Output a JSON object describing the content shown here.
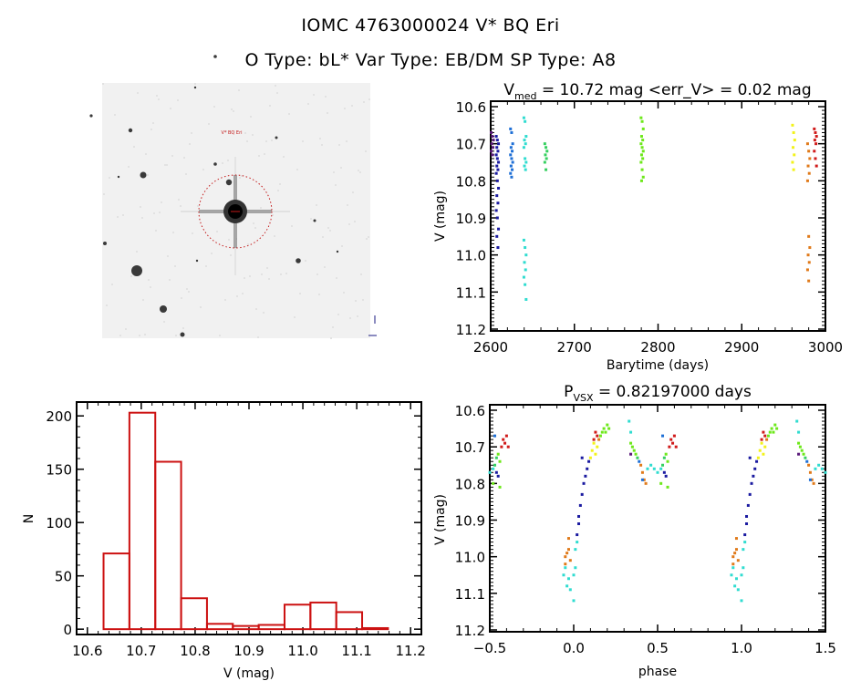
{
  "header": {
    "title_line1": "IOMC 4763000024    V* BQ Eri",
    "title_line2": "O Type: bL*   Var Type: EB/DM   SP Type: A8"
  },
  "colors": {
    "purple": "#5a1a7a",
    "darkblue": "#1a1aa0",
    "blue": "#1e6fd6",
    "cyan": "#30dcd0",
    "green": "#36d060",
    "lime": "#6de81a",
    "yellow": "#f2f21a",
    "orange": "#e07a1a",
    "red": "#d01a1a",
    "hist": "#cc1111",
    "axis": "#000000"
  },
  "sky_image": {
    "target_label": "V* BQ Eri",
    "description": "DSS finder image centered on target with dotted red circle"
  },
  "chart_data": [
    {
      "id": "lightcurve",
      "type": "scatter",
      "title_main": "V",
      "title_sub": "med",
      "title_rest": " = 10.72 mag <err_V> = 0.02 mag",
      "xlabel": "Barytime (days)",
      "ylabel": "V (mag)",
      "xlim": [
        2600,
        3000
      ],
      "ylim": [
        10.6,
        11.2
      ],
      "y_inverted": true,
      "xticks": [
        2600,
        2700,
        2800,
        2900,
        3000
      ],
      "xtick_labels": [
        "2600",
        "2700",
        "2800",
        "2900",
        "3000"
      ],
      "yticks": [
        10.6,
        10.7,
        10.8,
        10.9,
        11.0,
        11.1,
        11.2
      ],
      "ytick_labels": [
        "10.6",
        "10.7",
        "10.8",
        "10.9",
        "11.0",
        "11.1",
        "11.2"
      ],
      "series": [
        {
          "name": "purple",
          "color_key": "purple",
          "x": 2602,
          "y": [
            10.67,
            10.68,
            10.69,
            10.7,
            10.71,
            10.72,
            10.73
          ]
        },
        {
          "name": "darkblue",
          "color_key": "darkblue",
          "x": 2608,
          "y": [
            10.68,
            10.69,
            10.7,
            10.71,
            10.72,
            10.73,
            10.74,
            10.75,
            10.76,
            10.77,
            10.78,
            10.8,
            10.82,
            10.84,
            10.86,
            10.88,
            10.9,
            10.93,
            10.95,
            10.98
          ]
        },
        {
          "name": "blue",
          "color_key": "blue",
          "x": 2625,
          "y": [
            10.66,
            10.67,
            10.7,
            10.71,
            10.72,
            10.73,
            10.74,
            10.75,
            10.76,
            10.77,
            10.78,
            10.79
          ]
        },
        {
          "name": "cyan",
          "color_key": "cyan",
          "x": 2641,
          "y": [
            10.63,
            10.64,
            10.68,
            10.69,
            10.7,
            10.71,
            10.74,
            10.75,
            10.76,
            10.77,
            10.96,
            10.98,
            11.0,
            11.02,
            11.04,
            11.06,
            11.08,
            11.12
          ]
        },
        {
          "name": "green",
          "color_key": "green",
          "x": 2666,
          "y": [
            10.7,
            10.71,
            10.72,
            10.73,
            10.74,
            10.75,
            10.77
          ]
        },
        {
          "name": "lime",
          "color_key": "lime",
          "x": 2781,
          "y": [
            10.63,
            10.64,
            10.66,
            10.68,
            10.69,
            10.7,
            10.71,
            10.72,
            10.73,
            10.74,
            10.75,
            10.77,
            10.79,
            10.8
          ]
        },
        {
          "name": "yellow",
          "color_key": "yellow",
          "x": 2962,
          "y": [
            10.65,
            10.67,
            10.69,
            10.71,
            10.73,
            10.75,
            10.77
          ]
        },
        {
          "name": "orange",
          "color_key": "orange",
          "x": 2980,
          "y": [
            10.7,
            10.72,
            10.74,
            10.76,
            10.78,
            10.8,
            10.95,
            10.98,
            11.0,
            11.02,
            11.04,
            11.07
          ]
        },
        {
          "name": "red",
          "color_key": "red",
          "x": 2988,
          "y": [
            10.66,
            10.67,
            10.68,
            10.69,
            10.7,
            10.72,
            10.74,
            10.76
          ]
        }
      ]
    },
    {
      "id": "histogram",
      "type": "bar",
      "title": "",
      "xlabel": "V (mag)",
      "ylabel": "N",
      "xlim": [
        10.58,
        11.22
      ],
      "ylim": [
        -5,
        213
      ],
      "xticks": [
        10.6,
        10.7,
        10.8,
        10.9,
        11.0,
        11.1,
        11.2
      ],
      "xtick_labels": [
        "10.6",
        "10.7",
        "10.8",
        "10.9",
        "11.0",
        "11.1",
        "11.2"
      ],
      "yticks": [
        0,
        50,
        100,
        150,
        200
      ],
      "ytick_labels": [
        "0",
        "50",
        "100",
        "150",
        "200"
      ],
      "bin_edges": [
        10.63,
        10.678,
        10.726,
        10.774,
        10.822,
        10.87,
        10.918,
        10.966,
        11.014,
        11.062,
        11.11,
        11.158
      ],
      "values": [
        71,
        203,
        157,
        29,
        5,
        3,
        4,
        23,
        25,
        16,
        1
      ]
    },
    {
      "id": "phase",
      "type": "scatter",
      "title_main": "P",
      "title_sub": "VSX",
      "title_rest": " = 0.82197000 days",
      "xlabel": "phase",
      "ylabel": "V (mag)",
      "xlim": [
        -0.5,
        1.5
      ],
      "ylim": [
        10.6,
        11.2
      ],
      "y_inverted": true,
      "period_days": 0.82197,
      "xticks": [
        -0.5,
        0.0,
        0.5,
        1.0,
        1.5
      ],
      "xtick_labels": [
        "−0.5",
        "0.0",
        "0.5",
        "1.0",
        "1.5"
      ],
      "yticks": [
        10.6,
        10.7,
        10.8,
        10.9,
        11.0,
        11.1,
        11.2
      ],
      "ytick_labels": [
        "10.6",
        "10.7",
        "10.8",
        "10.9",
        "11.0",
        "11.1",
        "11.2"
      ],
      "curve_points": [
        {
          "phase": -0.06,
          "V": 11.05,
          "c": "cyan"
        },
        {
          "phase": -0.05,
          "V": 11.03,
          "c": "cyan"
        },
        {
          "phase": -0.04,
          "V": 11.08,
          "c": "cyan"
        },
        {
          "phase": -0.03,
          "V": 11.06,
          "c": "cyan"
        },
        {
          "phase": -0.02,
          "V": 11.09,
          "c": "cyan"
        },
        {
          "phase": 0.0,
          "V": 11.12,
          "c": "cyan"
        },
        {
          "phase": 0.0,
          "V": 11.05,
          "c": "cyan"
        },
        {
          "phase": 0.01,
          "V": 11.03,
          "c": "cyan"
        },
        {
          "phase": -0.05,
          "V": 11.0,
          "c": "orange"
        },
        {
          "phase": -0.04,
          "V": 10.99,
          "c": "orange"
        },
        {
          "phase": -0.03,
          "V": 10.98,
          "c": "orange"
        },
        {
          "phase": -0.02,
          "V": 11.01,
          "c": "orange"
        },
        {
          "phase": -0.03,
          "V": 10.95,
          "c": "orange"
        },
        {
          "phase": -0.05,
          "V": 11.02,
          "c": "orange"
        },
        {
          "phase": 0.01,
          "V": 10.98,
          "c": "cyan"
        },
        {
          "phase": 0.02,
          "V": 10.96,
          "c": "cyan"
        },
        {
          "phase": 0.02,
          "V": 10.94,
          "c": "darkblue"
        },
        {
          "phase": 0.03,
          "V": 10.91,
          "c": "darkblue"
        },
        {
          "phase": 0.03,
          "V": 10.89,
          "c": "darkblue"
        },
        {
          "phase": 0.04,
          "V": 10.86,
          "c": "darkblue"
        },
        {
          "phase": 0.05,
          "V": 10.83,
          "c": "darkblue"
        },
        {
          "phase": 0.06,
          "V": 10.8,
          "c": "darkblue"
        },
        {
          "phase": 0.07,
          "V": 10.78,
          "c": "darkblue"
        },
        {
          "phase": 0.08,
          "V": 10.76,
          "c": "darkblue"
        },
        {
          "phase": 0.09,
          "V": 10.74,
          "c": "darkblue"
        },
        {
          "phase": 0.05,
          "V": 10.73,
          "c": "darkblue"
        },
        {
          "phase": 0.1,
          "V": 10.73,
          "c": "yellow"
        },
        {
          "phase": 0.11,
          "V": 10.71,
          "c": "yellow"
        },
        {
          "phase": 0.12,
          "V": 10.69,
          "c": "yellow"
        },
        {
          "phase": 0.13,
          "V": 10.72,
          "c": "yellow"
        },
        {
          "phase": 0.14,
          "V": 10.7,
          "c": "yellow"
        },
        {
          "phase": 0.12,
          "V": 10.68,
          "c": "red"
        },
        {
          "phase": 0.13,
          "V": 10.66,
          "c": "red"
        },
        {
          "phase": 0.14,
          "V": 10.67,
          "c": "red"
        },
        {
          "phase": 0.15,
          "V": 10.68,
          "c": "orange"
        },
        {
          "phase": 0.16,
          "V": 10.67,
          "c": "lime"
        },
        {
          "phase": 0.17,
          "V": 10.66,
          "c": "lime"
        },
        {
          "phase": 0.18,
          "V": 10.65,
          "c": "lime"
        },
        {
          "phase": 0.19,
          "V": 10.66,
          "c": "lime"
        },
        {
          "phase": 0.2,
          "V": 10.64,
          "c": "lime"
        },
        {
          "phase": 0.21,
          "V": 10.65,
          "c": "lime"
        },
        {
          "phase": 0.33,
          "V": 10.63,
          "c": "cyan"
        },
        {
          "phase": 0.34,
          "V": 10.66,
          "c": "cyan"
        },
        {
          "phase": 0.34,
          "V": 10.69,
          "c": "lime"
        },
        {
          "phase": 0.35,
          "V": 10.7,
          "c": "lime"
        },
        {
          "phase": 0.36,
          "V": 10.71,
          "c": "lime"
        },
        {
          "phase": 0.37,
          "V": 10.72,
          "c": "lime"
        },
        {
          "phase": 0.34,
          "V": 10.72,
          "c": "purple"
        },
        {
          "phase": 0.38,
          "V": 10.73,
          "c": "green"
        },
        {
          "phase": 0.39,
          "V": 10.74,
          "c": "blue"
        },
        {
          "phase": 0.4,
          "V": 10.75,
          "c": "orange"
        },
        {
          "phase": 0.41,
          "V": 10.77,
          "c": "orange"
        },
        {
          "phase": 0.42,
          "V": 10.79,
          "c": "orange"
        },
        {
          "phase": 0.43,
          "V": 10.8,
          "c": "orange"
        },
        {
          "phase": 0.41,
          "V": 10.79,
          "c": "blue"
        },
        {
          "phase": 0.44,
          "V": 10.76,
          "c": "cyan"
        },
        {
          "phase": 0.46,
          "V": 10.75,
          "c": "cyan"
        },
        {
          "phase": 0.48,
          "V": 10.76,
          "c": "cyan"
        },
        {
          "phase": 0.5,
          "V": 10.77,
          "c": "cyan"
        },
        {
          "phase": 0.52,
          "V": 10.76,
          "c": "cyan"
        },
        {
          "phase": 0.53,
          "V": 10.75,
          "c": "green"
        },
        {
          "phase": 0.54,
          "V": 10.73,
          "c": "green"
        },
        {
          "phase": 0.55,
          "V": 10.72,
          "c": "lime"
        },
        {
          "phase": 0.56,
          "V": 10.74,
          "c": "lime"
        },
        {
          "phase": 0.54,
          "V": 10.77,
          "c": "darkblue"
        },
        {
          "phase": 0.55,
          "V": 10.78,
          "c": "darkblue"
        },
        {
          "phase": 0.57,
          "V": 10.7,
          "c": "red"
        },
        {
          "phase": 0.58,
          "V": 10.68,
          "c": "red"
        },
        {
          "phase": 0.59,
          "V": 10.69,
          "c": "red"
        },
        {
          "phase": 0.6,
          "V": 10.67,
          "c": "red"
        },
        {
          "phase": 0.61,
          "V": 10.7,
          "c": "red"
        },
        {
          "phase": 0.53,
          "V": 10.67,
          "c": "blue"
        },
        {
          "phase": 0.52,
          "V": 10.8,
          "c": "lime"
        },
        {
          "phase": 0.56,
          "V": 10.81,
          "c": "lime"
        }
      ]
    }
  ]
}
